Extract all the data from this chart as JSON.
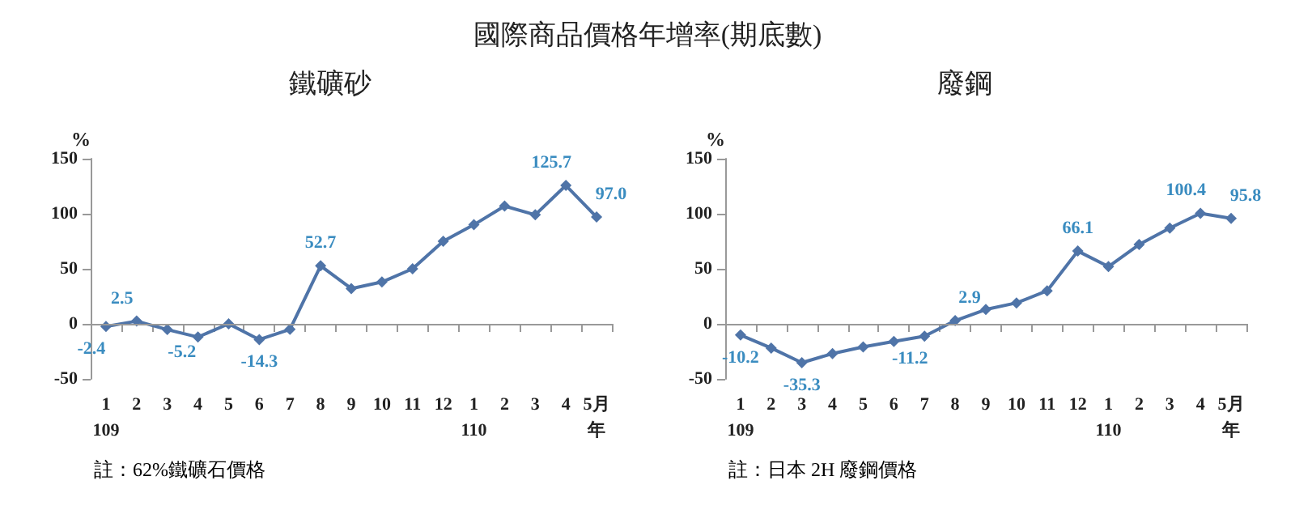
{
  "chart_data": [
    {
      "type": "line",
      "title": "國際商品價格年增率(期底數)",
      "subtitle": "鐵礦砂",
      "ylabel": "%",
      "categories": [
        "1\n109",
        "2",
        "3",
        "4",
        "5",
        "6",
        "7",
        "8",
        "9",
        "10",
        "11",
        "12",
        "1\n110",
        "2",
        "3",
        "4",
        "5月年"
      ],
      "series": [
        {
          "color": "#4f74a8",
          "values": [
            -2.4,
            2.5,
            -5.2,
            -12,
            0,
            -14.3,
            -5,
            52.7,
            32,
            38,
            50,
            75,
            90,
            107,
            99,
            125.7,
            97.0
          ],
          "value_labels": [
            "-2.4",
            "2.5",
            "-5.2",
            null,
            null,
            "-14.3",
            null,
            "52.7",
            null,
            null,
            null,
            null,
            null,
            null,
            null,
            "125.7",
            "97.0"
          ]
        }
      ],
      "ylim": [
        -50,
        150
      ],
      "yticks": [
        -50,
        0,
        50,
        100,
        150
      ],
      "ref_lines": [
        {
          "axis": "y",
          "value": 0
        }
      ],
      "marker": "diamond",
      "line_style": "solid",
      "annotations": [
        "註：62%鐵礦石價格"
      ]
    },
    {
      "type": "line",
      "subtitle": "廢鋼",
      "ylabel": "%",
      "categories": [
        "1\n109",
        "2",
        "3",
        "4",
        "5",
        "6",
        "7",
        "8",
        "9",
        "10",
        "11",
        "12",
        "1\n110",
        "2",
        "3",
        "4",
        "5月年"
      ],
      "series": [
        {
          "color": "#4f74a8",
          "values": [
            -10.2,
            -22,
            -35.3,
            -27,
            -21,
            -16,
            -11.2,
            2.9,
            13,
            19,
            30,
            66.1,
            52,
            72,
            87,
            100.4,
            95.8
          ],
          "value_labels": [
            "-10.2",
            null,
            "-35.3",
            null,
            null,
            null,
            "-11.2",
            "2.9",
            null,
            null,
            null,
            "66.1",
            null,
            null,
            null,
            "100.4",
            "95.8"
          ]
        }
      ],
      "ylim": [
        -50,
        150
      ],
      "yticks": [
        -50,
        0,
        50,
        100,
        150
      ],
      "ref_lines": [
        {
          "axis": "y",
          "value": 0
        }
      ],
      "marker": "diamond",
      "line_style": "solid",
      "annotations": [
        "註：日本 2H 廢鋼價格"
      ]
    }
  ]
}
